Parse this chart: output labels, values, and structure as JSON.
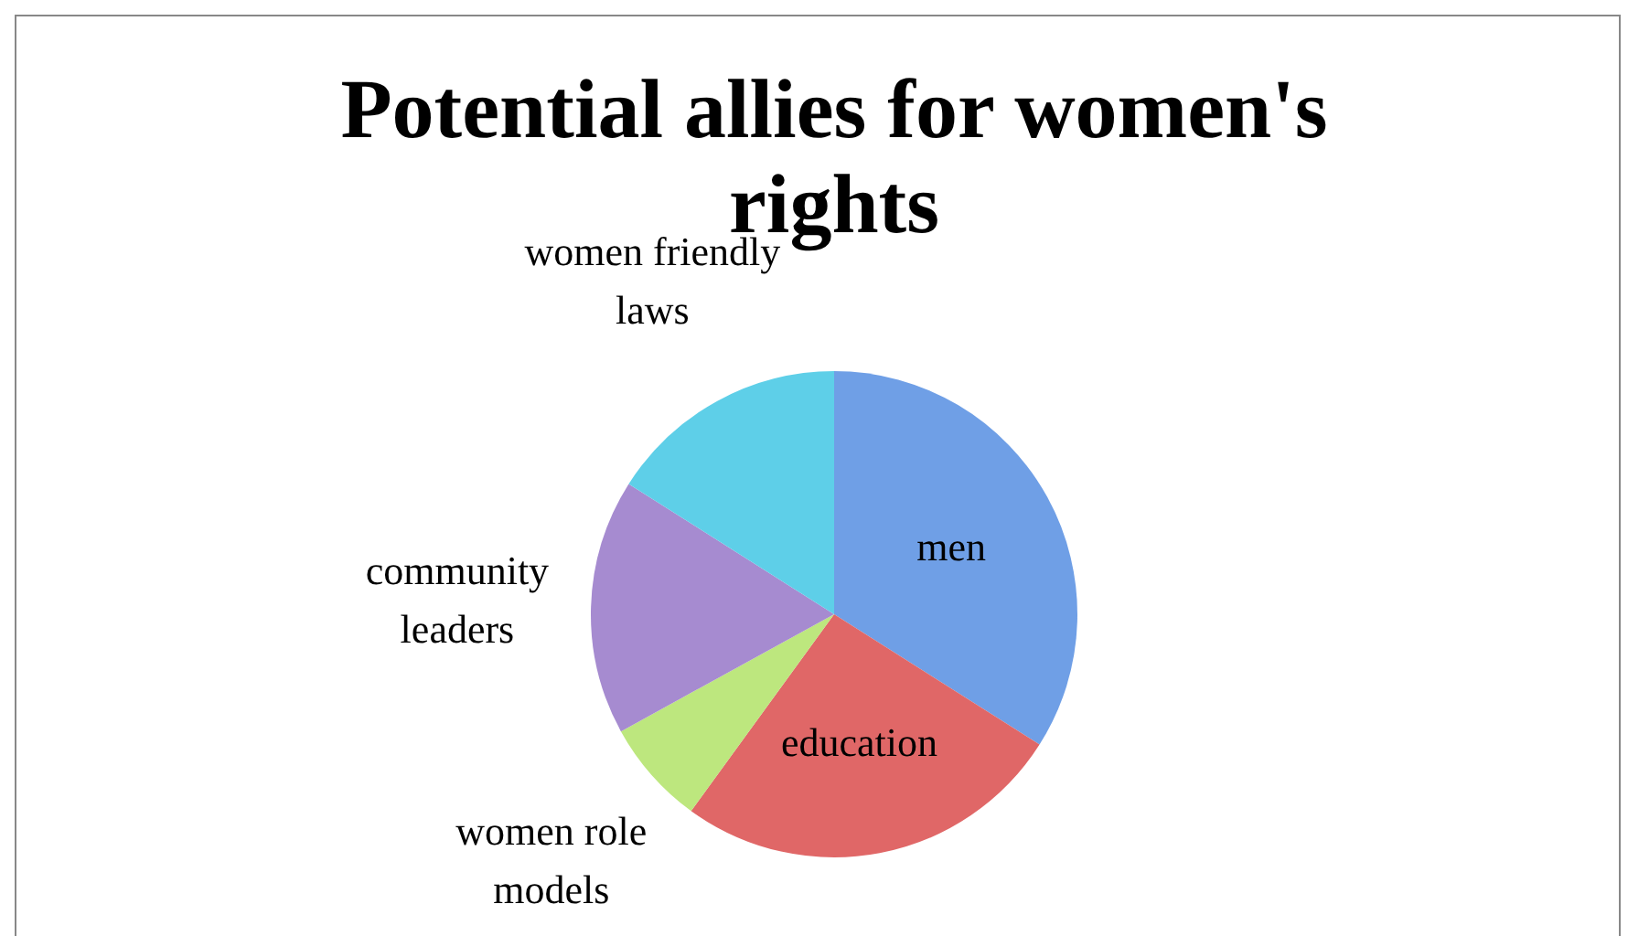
{
  "chart_data": {
    "type": "pie",
    "title": "Potential allies for women's rights",
    "categories": [
      "men",
      "education",
      "women role models",
      "community leaders",
      "women friendly laws"
    ],
    "values": [
      34,
      26,
      7,
      17,
      16
    ],
    "colors": [
      "#6f9fe6",
      "#e06767",
      "#bde77e",
      "#a68bd0",
      "#5ecfe8"
    ],
    "legend": false
  }
}
